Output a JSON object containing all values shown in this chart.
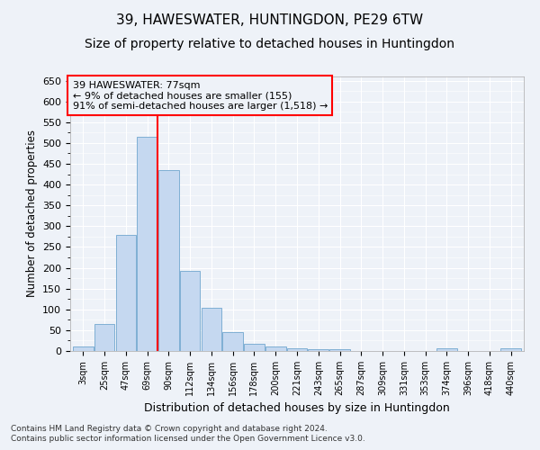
{
  "title1": "39, HAWESWATER, HUNTINGDON, PE29 6TW",
  "title2": "Size of property relative to detached houses in Huntingdon",
  "xlabel": "Distribution of detached houses by size in Huntingdon",
  "ylabel": "Number of detached properties",
  "footer1": "Contains HM Land Registry data © Crown copyright and database right 2024.",
  "footer2": "Contains public sector information licensed under the Open Government Licence v3.0.",
  "categories": [
    "3sqm",
    "25sqm",
    "47sqm",
    "69sqm",
    "90sqm",
    "112sqm",
    "134sqm",
    "156sqm",
    "178sqm",
    "200sqm",
    "221sqm",
    "243sqm",
    "265sqm",
    "287sqm",
    "309sqm",
    "331sqm",
    "353sqm",
    "374sqm",
    "396sqm",
    "418sqm",
    "440sqm"
  ],
  "values": [
    10,
    65,
    280,
    515,
    435,
    193,
    103,
    46,
    17,
    10,
    6,
    5,
    5,
    0,
    0,
    0,
    0,
    6,
    0,
    0,
    6
  ],
  "bar_color": "#c5d8f0",
  "bar_edge_color": "#7fafd4",
  "annotation_line1": "39 HAWESWATER: 77sqm",
  "annotation_line2": "← 9% of detached houses are smaller (155)",
  "annotation_line3": "91% of semi-detached houses are larger (1,518) →",
  "ylim": [
    0,
    660
  ],
  "yticks": [
    0,
    50,
    100,
    150,
    200,
    250,
    300,
    350,
    400,
    450,
    500,
    550,
    600,
    650
  ],
  "bg_color": "#eef2f8",
  "grid_color": "#ffffff",
  "title_fontsize": 11,
  "subtitle_fontsize": 10,
  "red_line_index": 3.5
}
